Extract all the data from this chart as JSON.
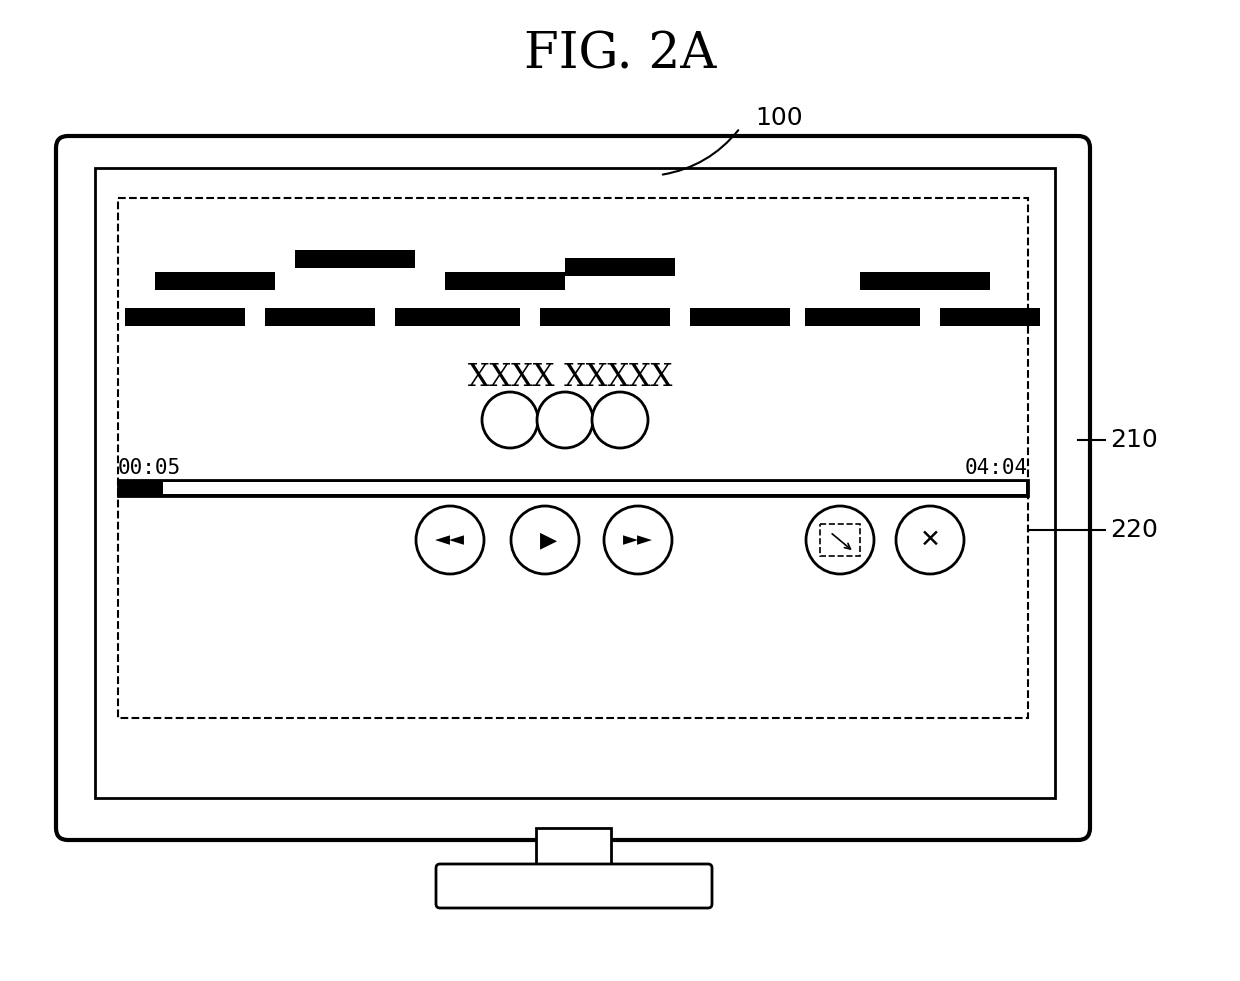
{
  "title": "FIG. 2A",
  "title_fontsize": 36,
  "bg_color": "#ffffff",
  "label_100": "100",
  "label_210": "210",
  "label_220": "220",
  "time_start": "00:05",
  "time_end": "04:04",
  "xxxx_text": "XXXX XXXXX"
}
